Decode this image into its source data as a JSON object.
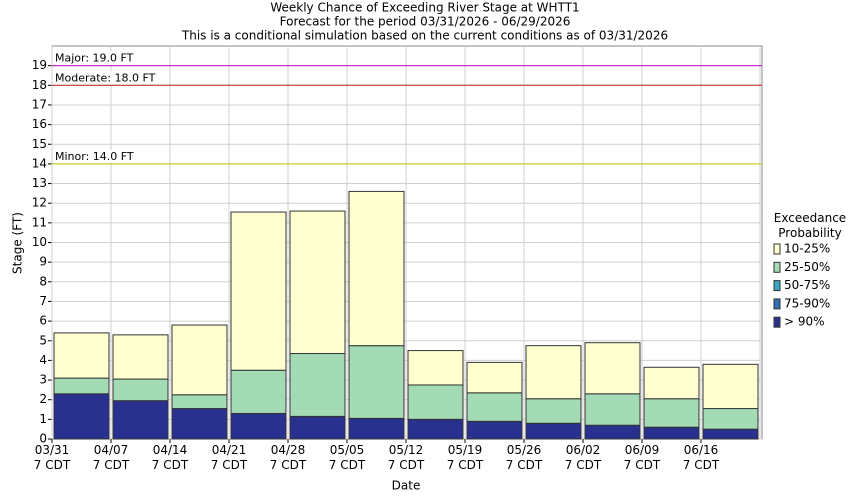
{
  "chart_data": {
    "type": "stacked-bar",
    "title": "Weekly Chance of Exceeding River Stage at WHTT1",
    "subtitle": [
      "Forecast for the period 03/31/2026 - 06/29/2026",
      "This is a conditional simulation based on the current conditions as of 03/31/2026"
    ],
    "x_label": "Date",
    "y_label": "Stage (FT)",
    "legend_title": "Exceedance\nProbability",
    "legend": "right",
    "categories": [
      "03/31\n7 CDT",
      "04/07\n7 CDT",
      "04/14\n7 CDT",
      "04/21\n7 CDT",
      "04/28\n7 CDT",
      "05/05\n7 CDT",
      "05/12\n7 CDT",
      "05/19\n7 CDT",
      "05/26\n7 CDT",
      "06/02\n7 CDT",
      "06/09\n7 CDT",
      "06/16\n7 CDT"
    ],
    "series": [
      {
        "name": "> 90%",
        "color": "#28318e",
        "values": [
          2.3,
          1.95,
          1.55,
          1.3,
          1.15,
          1.05,
          1.0,
          0.9,
          0.8,
          0.7,
          0.6,
          0.5
        ]
      },
      {
        "name": "75-90%",
        "color": "#2f6fb6",
        "values": [
          0,
          0,
          0,
          0,
          0,
          0,
          0,
          0,
          0,
          0,
          0,
          0
        ]
      },
      {
        "name": "50-75%",
        "color": "#3aa6c4",
        "values": [
          0,
          0,
          0,
          0,
          0,
          0,
          0,
          0,
          0,
          0,
          0,
          0
        ]
      },
      {
        "name": "25-50%",
        "color": "#a3dbb5",
        "values": [
          0.8,
          1.1,
          0.7,
          2.2,
          3.2,
          3.7,
          1.75,
          1.45,
          1.25,
          1.6,
          1.45,
          1.05
        ]
      },
      {
        "name": "10-25%",
        "color": "#ffffcf",
        "values": [
          2.3,
          2.25,
          3.55,
          8.05,
          7.25,
          7.85,
          1.75,
          1.55,
          2.7,
          2.6,
          1.6,
          2.25
        ]
      }
    ],
    "thresholds": [
      {
        "label": "Major: 19.0 FT",
        "value": 19,
        "color": "#cc33cc"
      },
      {
        "label": "Moderate: 18.0 FT",
        "value": 18,
        "color": "#cc3333"
      },
      {
        "label": "Minor: 14.0 FT",
        "value": 14,
        "color": "#cccc33"
      }
    ],
    "ylim": [
      0,
      20
    ],
    "yticks": [
      0,
      1,
      2,
      3,
      4,
      5,
      6,
      7,
      8,
      9,
      10,
      11,
      12,
      13,
      14,
      15,
      16,
      17,
      18,
      19
    ],
    "grid": true
  }
}
